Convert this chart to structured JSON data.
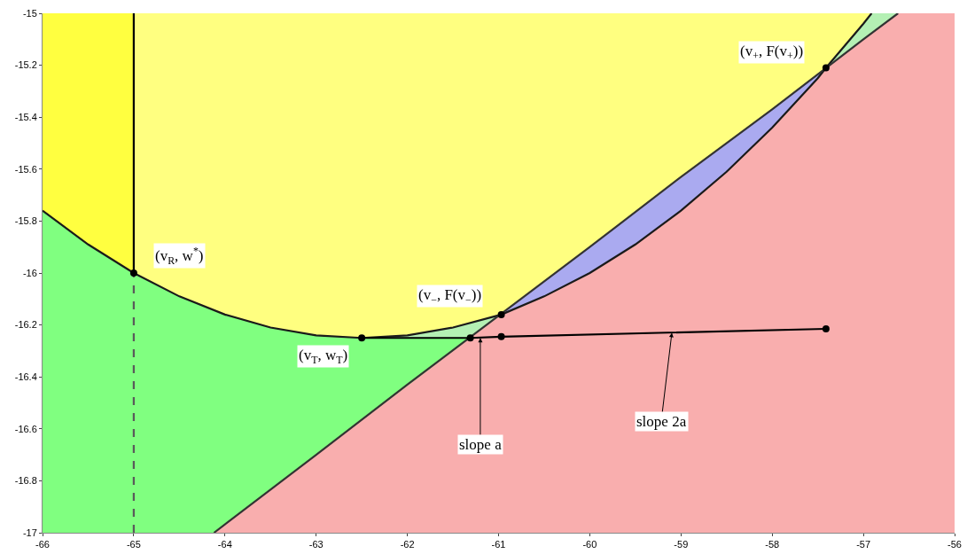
{
  "chart_data": {
    "type": "line",
    "xlim": [
      -66,
      -56
    ],
    "xticks": [
      -66,
      -65,
      -64,
      -63,
      -62,
      -61,
      -60,
      -59,
      -58,
      -57,
      -56
    ],
    "ylim": [
      -17,
      -15
    ],
    "yticks": [
      -17,
      -16.8,
      -16.6,
      -16.4,
      -16.2,
      -16,
      -15.8,
      -15.6,
      -15.4,
      -15.2,
      -15
    ],
    "series": [
      {
        "type": "area",
        "color": "#f9aeae",
        "x": [
          -64.5,
          -57,
          -56,
          -56
        ],
        "values": [
          -17,
          -15,
          -15,
          -17
        ]
      },
      {
        "type": "area",
        "color": "#ffff40",
        "x": [
          -66,
          -66,
          -65,
          -65,
          -65.5
        ],
        "values": [
          -15.76,
          -15,
          -15,
          -16.0,
          -15.89
        ]
      },
      {
        "type": "area",
        "color": "#80ff80",
        "x": [
          -66,
          -65.5,
          -65,
          -64.5,
          -64,
          -63.5,
          -63,
          -62.5,
          -61.31,
          -64.12,
          -66
        ],
        "values": [
          -15.76,
          -15.89,
          -16.0,
          -16.09,
          -16.16,
          -16.21,
          -16.24,
          -16.25,
          -16.25,
          -17,
          -17
        ]
      },
      {
        "type": "area",
        "color": "#ffff80",
        "x": [
          -65,
          -56.91,
          -57,
          -57.41,
          -60.97,
          -61.5,
          -62,
          -62.5,
          -63,
          -63.5,
          -64,
          -64.5,
          -65
        ],
        "values": [
          -15,
          -15,
          -15.04,
          -15.21,
          -16.16,
          -16.21,
          -16.24,
          -16.25,
          -16.24,
          -16.21,
          -16.16,
          -16.09,
          -16.0
        ]
      },
      {
        "type": "area",
        "color": "#aaaaf0",
        "x": [
          -60.97,
          -57.41,
          -57.5,
          -58,
          -58.5,
          -59,
          -59.5,
          -60,
          -60.5
        ],
        "values": [
          -16.16,
          -15.21,
          -15.25,
          -15.44,
          -15.61,
          -15.76,
          -15.89,
          -16.0,
          -16.09
        ]
      },
      {
        "type": "area",
        "color": "#b4f0b4",
        "x": [
          -57.41,
          -56.91,
          -56.62
        ],
        "values": [
          -15.21,
          -15,
          -15
        ]
      },
      {
        "type": "area",
        "color": "#b4f0b4",
        "x": [
          -62.5,
          -62,
          -61.5,
          -60.97,
          -61.31
        ],
        "values": [
          -16.25,
          -16.24,
          -16.21,
          -16.16,
          -16.25
        ]
      },
      {
        "color": "#1a1a1a",
        "x": [
          -66,
          -65.5,
          -65,
          -64.5,
          -64,
          -63.5,
          -63,
          -62.5,
          -62,
          -61.5,
          -60.97,
          -60.5,
          -60,
          -59.5,
          -59,
          -58.5,
          -58,
          -57.5,
          -57.41,
          -57,
          -56.91
        ],
        "values": [
          -15.76,
          -15.89,
          -16.0,
          -16.09,
          -16.16,
          -16.21,
          -16.24,
          -16.25,
          -16.24,
          -16.21,
          -16.16,
          -16.09,
          -16.0,
          -15.89,
          -15.76,
          -15.61,
          -15.44,
          -15.25,
          -15.21,
          -15.04,
          -15
        ]
      },
      {
        "color": "#333333",
        "x": [
          -64.12,
          -63,
          -62,
          -60,
          -59,
          -58,
          -57,
          -56.62
        ],
        "values": [
          -17,
          -16.7,
          -16.43,
          -15.9,
          -15.63,
          -15.37,
          -15.1,
          -15
        ]
      },
      {
        "color": "#000000",
        "x": [
          -62.5,
          -61.31,
          -60.97,
          -57.41
        ],
        "values": [
          -16.25,
          -16.25,
          -16.245,
          -16.215
        ]
      },
      {
        "color": "#000000",
        "x": [
          -65,
          -65
        ],
        "values": [
          -16,
          -15
        ]
      },
      {
        "color": "#5a5a5a",
        "line_style": "dashed",
        "x": [
          -65,
          -65
        ],
        "values": [
          -17,
          -16
        ]
      },
      {
        "type": "scatter",
        "color": "#000000",
        "marker": "circle",
        "x": [
          -65,
          -62.5,
          -61.31,
          -60.97,
          -60.97,
          -57.41,
          -57.41
        ],
        "values": [
          -16,
          -16.25,
          -16.25,
          -16.16,
          -16.245,
          -15.21,
          -16.215
        ]
      }
    ],
    "annotations": [
      {
        "text": "(v$_{R}$, w$^{*}$)",
        "x": -65,
        "y": -16
      },
      {
        "text": "(v$_{T}$, w$_{T}$)",
        "x": -62.5,
        "y": -16.25
      },
      {
        "text": "(v$_{−}$, F(v$_{−}$))",
        "x": -60.97,
        "y": -16.16
      },
      {
        "text": "(v$_{+}$, F(v$_{+}$))",
        "x": -57.41,
        "y": -15.21
      },
      {
        "text": "slope a",
        "x": -61.2,
        "y": -16.25
      },
      {
        "text": "slope 2a",
        "x": -59.1,
        "y": -16.23
      }
    ]
  }
}
